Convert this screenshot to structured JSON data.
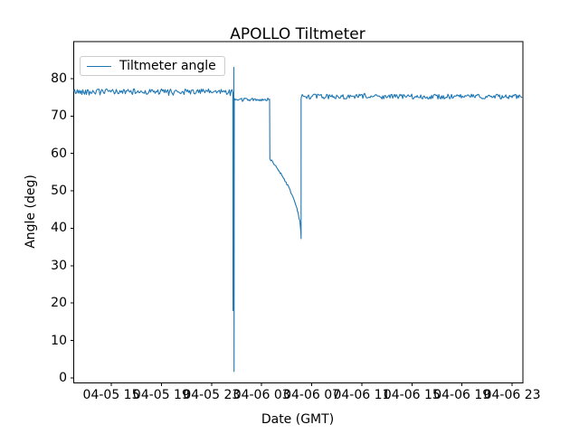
{
  "chart_data": {
    "type": "line",
    "title": "APOLLO Tiltmeter",
    "xlabel": "Date (GMT)",
    "ylabel": "Angle (deg)",
    "line_color": "#1f77b4",
    "axes_color": "#000000",
    "background": "#ffffff",
    "grid": false,
    "legend": {
      "label": "Tiltmeter angle",
      "position": "upper left"
    },
    "x_tick_labels": [
      "04-05 15",
      "04-05 19",
      "04-05 23",
      "04-06 03",
      "04-06 07",
      "04-06 11",
      "04-06 15",
      "04-06 19",
      "04-06 23"
    ],
    "x_tick_hours": [
      3,
      7,
      11,
      15,
      19,
      23,
      27,
      31,
      35
    ],
    "x_range_hours": [
      0,
      35.86
    ],
    "y_ticks": [
      0,
      10,
      20,
      30,
      40,
      50,
      60,
      70,
      80
    ],
    "ylim": [
      -1.3,
      89.9
    ],
    "series": [
      {
        "name": "Tiltmeter angle",
        "color": "#1f77b4",
        "segments": [
          {
            "kind": "noisy",
            "t0": 0.0,
            "t1": 12.7,
            "level": 76.5,
            "amp": 0.75
          },
          {
            "kind": "path",
            "points": [
              [
                12.705,
                76.2
              ],
              [
                12.72,
                18.0
              ],
              [
                12.735,
                72.0
              ],
              [
                12.745,
                20.0
              ],
              [
                12.755,
                70.5
              ],
              [
                12.765,
                22.0
              ],
              [
                12.775,
                68.0
              ],
              [
                12.785,
                83.0
              ],
              [
                12.8,
                1.7
              ],
              [
                12.82,
                74.4
              ]
            ]
          },
          {
            "kind": "noisy",
            "t0": 12.82,
            "t1": 15.66,
            "level": 74.4,
            "amp": 0.4
          },
          {
            "kind": "noisy-path",
            "amp": 0.3,
            "points": [
              [
                15.66,
                58.5
              ],
              [
                16.0,
                57.2
              ],
              [
                16.4,
                55.3
              ],
              [
                16.8,
                53.2
              ],
              [
                17.2,
                50.7
              ],
              [
                17.55,
                48.0
              ],
              [
                17.85,
                45.0
              ],
              [
                18.05,
                42.0
              ],
              [
                18.13,
                39.2
              ]
            ]
          },
          {
            "kind": "path",
            "points": [
              [
                18.15,
                37.2
              ],
              [
                18.15,
                74.6
              ]
            ]
          },
          {
            "kind": "noisy",
            "t0": 18.17,
            "t1": 35.86,
            "level": 75.2,
            "amp": 0.65
          }
        ]
      }
    ]
  }
}
